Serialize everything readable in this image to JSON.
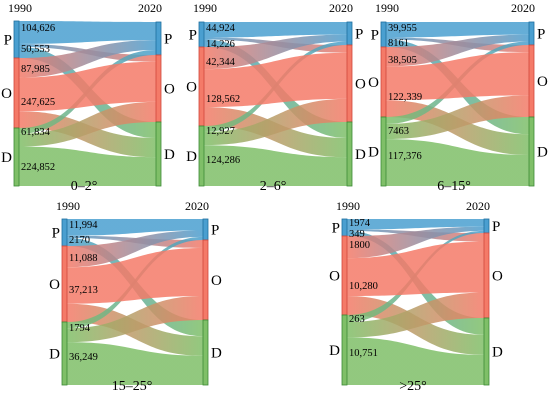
{
  "chart_data": [
    {
      "type": "sankey",
      "title": "0–2°",
      "left_label": "1990",
      "right_label": "2020",
      "nodes": [
        "P",
        "O",
        "D"
      ],
      "link_labels": {
        "P": [
          "104,626",
          "50,553"
        ],
        "O": [
          "87,985",
          "247,625"
        ],
        "D": [
          "61,834",
          "224,852"
        ]
      }
    },
    {
      "type": "sankey",
      "title": "2–6°",
      "left_label": "1990",
      "right_label": "2020",
      "nodes": [
        "P",
        "O",
        "D"
      ],
      "link_labels": {
        "P": [
          "44,924",
          "14,226"
        ],
        "O": [
          "42,344",
          "128,562"
        ],
        "D": [
          "12,927",
          "124,286"
        ]
      }
    },
    {
      "type": "sankey",
      "title": "6–15°",
      "left_label": "1990",
      "right_label": "2020",
      "nodes": [
        "P",
        "O",
        "D"
      ],
      "link_labels": {
        "P": [
          "39,955",
          "8161"
        ],
        "O": [
          "38,505",
          "122,339"
        ],
        "D": [
          "7463",
          "117,376"
        ]
      }
    },
    {
      "type": "sankey",
      "title": "15–25°",
      "left_label": "1990",
      "right_label": "2020",
      "nodes": [
        "P",
        "O",
        "D"
      ],
      "link_labels": {
        "P": [
          "11,994",
          "2170"
        ],
        "O": [
          "11,088",
          "37,213"
        ],
        "D": [
          "1794",
          "36,249"
        ]
      }
    },
    {
      "type": "sankey",
      "title": ">25°",
      "left_label": "1990",
      "right_label": "2020",
      "nodes": [
        "P",
        "O",
        "D"
      ],
      "link_labels": {
        "P": [
          "1974",
          "349"
        ],
        "O": [
          "1800",
          "10,280"
        ],
        "D": [
          "263",
          "10,751"
        ]
      }
    }
  ],
  "colors": {
    "P": "#4a9fd0",
    "O": "#f47a68",
    "D": "#7fbf68",
    "P_dark": "#1e6e9e",
    "O_dark": "#d0473a",
    "D_dark": "#3c8a35"
  }
}
